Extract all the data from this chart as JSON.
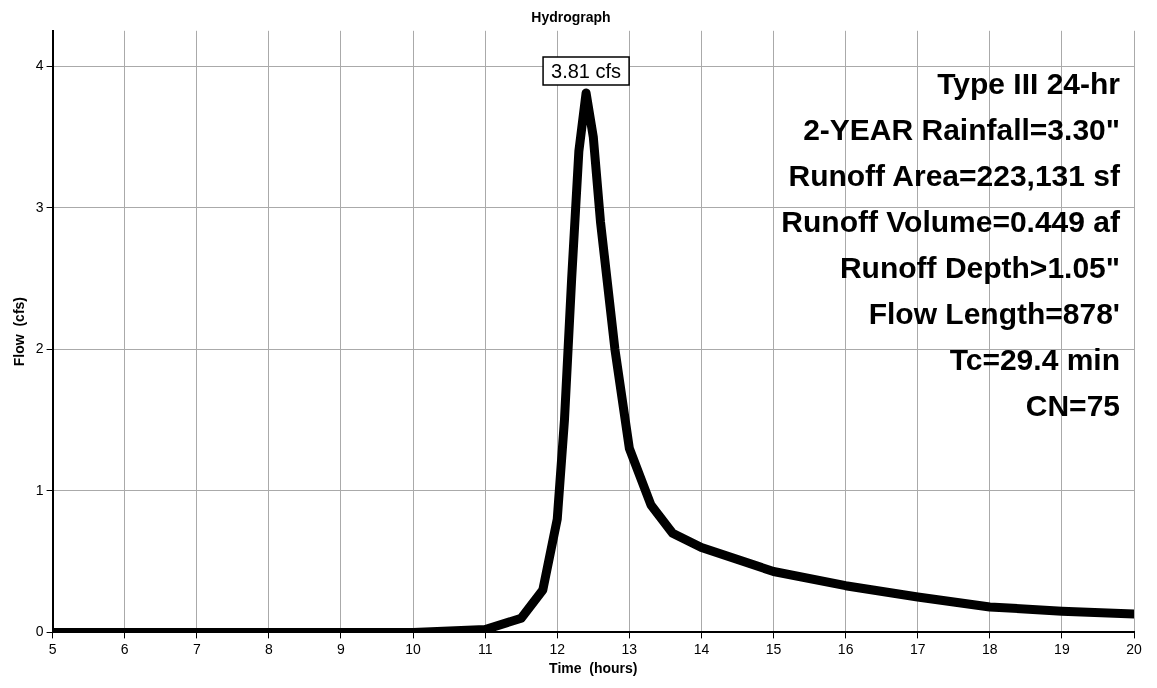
{
  "chart_data": {
    "type": "line",
    "title": "Hydrograph",
    "xlabel": "Time  (hours)",
    "ylabel": "Flow  (cfs)",
    "x": [
      5,
      10,
      11,
      11.5,
      11.8,
      12,
      12.1,
      12.2,
      12.3,
      12.4,
      12.5,
      12.6,
      12.8,
      13,
      13.3,
      13.6,
      14,
      15,
      16,
      17,
      18,
      19,
      20
    ],
    "series": [
      {
        "color": "#000000",
        "values": [
          0,
          0,
          0.02,
          0.1,
          0.3,
          0.8,
          1.5,
          2.5,
          3.4,
          3.81,
          3.5,
          2.9,
          2.0,
          1.3,
          0.9,
          0.7,
          0.6,
          0.43,
          0.33,
          0.25,
          0.18,
          0.15,
          0.13
        ],
        "value_labels": [
          null,
          null,
          null,
          null,
          null,
          null,
          null,
          null,
          null,
          "3.81 cfs",
          null,
          null,
          null,
          null,
          null,
          null,
          null,
          null,
          null,
          null,
          null,
          null,
          null
        ]
      }
    ],
    "xlim": [
      5,
      20
    ],
    "xticks": [
      5,
      6,
      7,
      8,
      9,
      10,
      11,
      12,
      13,
      14,
      15,
      16,
      17,
      18,
      19,
      20
    ],
    "ylim": [
      0,
      4.25
    ],
    "yticks": [
      0,
      1,
      2,
      3,
      4
    ],
    "grid": true,
    "line_style": "solid",
    "marker": "none",
    "legend": false,
    "annotations": [
      "Type III 24-hr",
      "2-YEAR Rainfall=3.30\"",
      "Runoff Area=223,131 sf",
      "Runoff Volume=0.449 af",
      "Runoff Depth>1.05\"",
      "Flow Length=878'",
      "Tc=29.4 min",
      "CN=75"
    ]
  }
}
